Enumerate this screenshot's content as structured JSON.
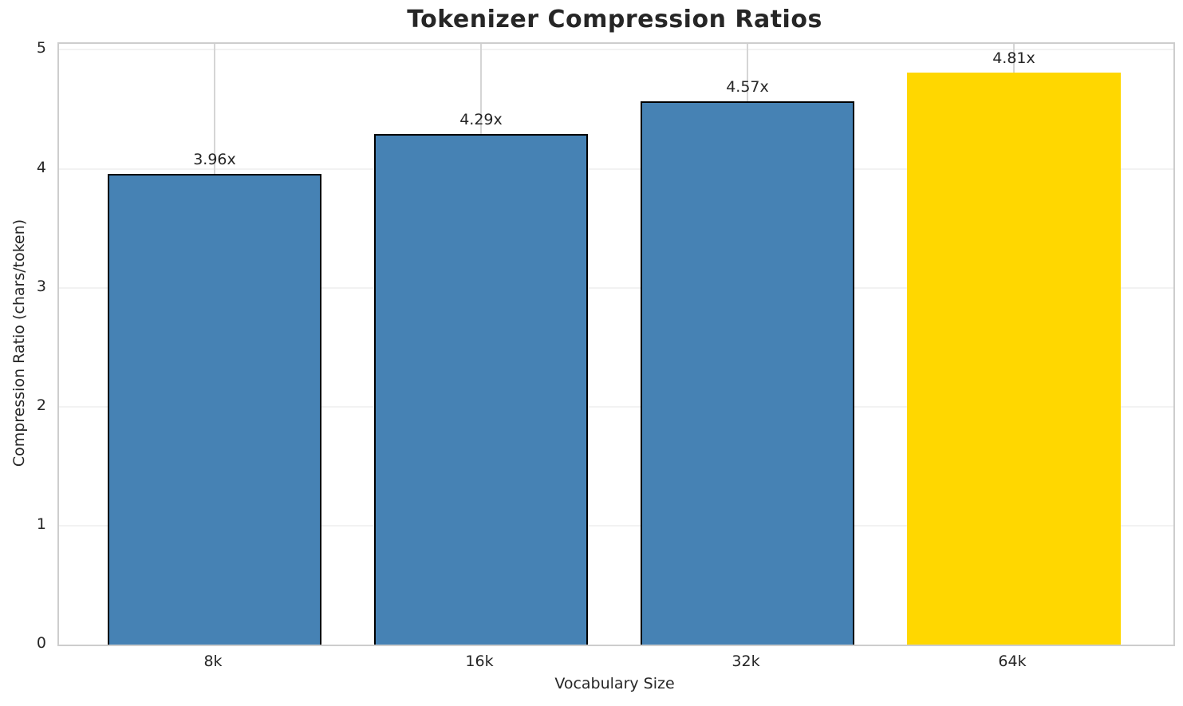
{
  "chart_data": {
    "type": "bar",
    "title": "Tokenizer Compression Ratios",
    "xlabel": "Vocabulary Size",
    "ylabel": "Compression Ratio (chars/token)",
    "categories": [
      "8k",
      "16k",
      "32k",
      "64k"
    ],
    "values": [
      3.96,
      4.29,
      4.57,
      4.81
    ],
    "bar_labels": [
      "3.96x",
      "4.29x",
      "4.57x",
      "4.81x"
    ],
    "yticks": [
      0,
      1,
      2,
      3,
      4,
      5
    ],
    "ytick_labels": [
      "0",
      "1",
      "2",
      "3",
      "4",
      "5"
    ],
    "ylim": [
      0,
      5.05
    ],
    "grid": true,
    "legend": "none",
    "bar_colors": [
      "#4682B4",
      "#4682B4",
      "#4682B4",
      "#FFD700"
    ],
    "bar_edge_colors": [
      "#000000",
      "#000000",
      "#000000",
      "none"
    ],
    "highlight_index": 3
  },
  "style": {
    "accent_blue": "#4682B4",
    "accent_gold": "#FFD700",
    "text_color": "#262626",
    "spine_color": "#cdcdcd",
    "grid_h_color": "#f2f2f2",
    "grid_v_color": "#d5d5d5",
    "background": "#ffffff"
  }
}
